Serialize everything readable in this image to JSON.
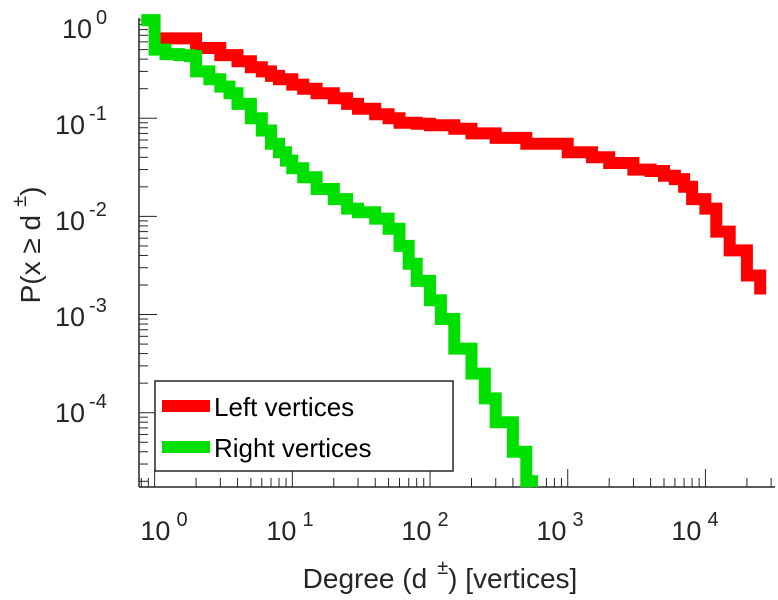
{
  "chart_data": {
    "type": "line",
    "style": "step",
    "xscale": "log",
    "yscale": "log",
    "xlim": [
      0.77,
      32000
    ],
    "ylim": [
      1.75e-05,
      1.05
    ],
    "xlabel_parts": {
      "before": "Degree (d",
      "sup": "±",
      "after": ") [vertices]"
    },
    "ylabel_parts": {
      "before": "P(x ≥ d",
      "sup": "±",
      "after": ")"
    },
    "x_ticks": [
      {
        "base": "10",
        "exp": "0",
        "value": 1
      },
      {
        "base": "10",
        "exp": "1",
        "value": 10
      },
      {
        "base": "10",
        "exp": "2",
        "value": 100
      },
      {
        "base": "10",
        "exp": "3",
        "value": 1000
      },
      {
        "base": "10",
        "exp": "4",
        "value": 10000
      }
    ],
    "y_ticks": [
      {
        "base": "10",
        "exp": "0",
        "value": 1
      },
      {
        "base": "10",
        "exp": "-1",
        "value": 0.1
      },
      {
        "base": "10",
        "exp": "-2",
        "value": 0.01
      },
      {
        "base": "10",
        "exp": "-3",
        "value": 0.001
      },
      {
        "base": "10",
        "exp": "-4",
        "value": 0.0001
      }
    ],
    "grid": false,
    "legend_position": "bottom-left",
    "series": [
      {
        "name": "Left vertices",
        "color": "#ff0000",
        "x": [
          1,
          2,
          3,
          4,
          5,
          6,
          7,
          8,
          10,
          12,
          15,
          20,
          25,
          30,
          40,
          50,
          60,
          80,
          100,
          150,
          200,
          300,
          500,
          1000,
          1500,
          2000,
          3000,
          4000,
          5000,
          6000,
          7000,
          8000,
          10000,
          12000,
          15000,
          20000,
          25000
        ],
        "y": [
          0.65,
          0.52,
          0.44,
          0.38,
          0.33,
          0.3,
          0.27,
          0.25,
          0.22,
          0.2,
          0.18,
          0.16,
          0.14,
          0.125,
          0.11,
          0.1,
          0.09,
          0.088,
          0.085,
          0.078,
          0.07,
          0.063,
          0.055,
          0.045,
          0.04,
          0.035,
          0.03,
          0.029,
          0.026,
          0.024,
          0.02,
          0.015,
          0.012,
          0.007,
          0.0045,
          0.0025,
          0.0016
        ]
      },
      {
        "name": "Right vertices",
        "color": "#00e000",
        "x": [
          0.8,
          1,
          1.2,
          1.5,
          1.8,
          2,
          2.5,
          3,
          3.5,
          4,
          5,
          6,
          7,
          8,
          9,
          10,
          12,
          15,
          20,
          25,
          30,
          40,
          50,
          60,
          70,
          80,
          100,
          120,
          150,
          200,
          250,
          300,
          400,
          500,
          550
        ],
        "y": [
          1,
          0.5,
          0.45,
          0.44,
          0.43,
          0.3,
          0.25,
          0.21,
          0.18,
          0.14,
          0.1,
          0.075,
          0.055,
          0.045,
          0.037,
          0.031,
          0.025,
          0.019,
          0.015,
          0.012,
          0.011,
          0.0095,
          0.0075,
          0.005,
          0.0033,
          0.0022,
          0.0014,
          0.0009,
          0.00045,
          0.00025,
          0.00014,
          8e-05,
          4e-05,
          2e-05,
          1.75e-05
        ]
      }
    ]
  }
}
